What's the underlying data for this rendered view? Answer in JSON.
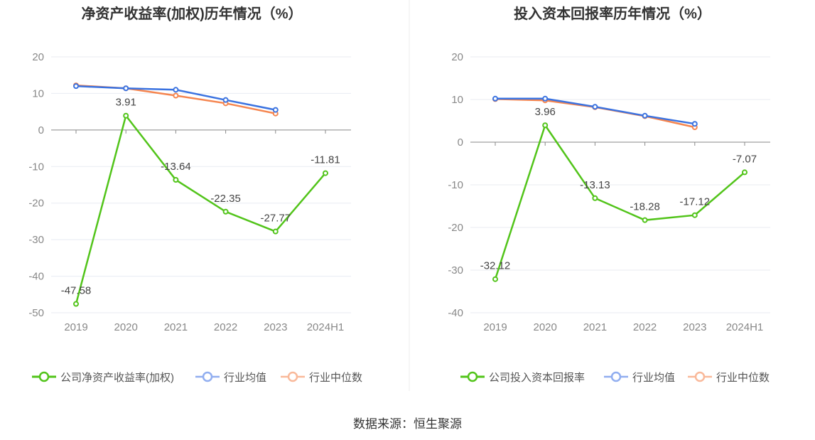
{
  "chart_data": [
    {
      "type": "line",
      "title": "净资产收益率(加权)历年情况（%）",
      "categories": [
        "2019",
        "2020",
        "2021",
        "2022",
        "2023",
        "2024H1"
      ],
      "ylim": [
        -50,
        20
      ],
      "yticks": [
        20,
        10,
        0,
        -10,
        -20,
        -30,
        -40,
        -50
      ],
      "grid": true,
      "legend_position": "bottom",
      "series": [
        {
          "name": "公司净资产收益率(加权)",
          "color": "#52c41a",
          "values": [
            -47.58,
            3.91,
            -13.64,
            -22.35,
            -27.77,
            -11.81
          ],
          "labels": [
            "-47.58",
            "3.91",
            "-13.64",
            "-22.35",
            "-27.77",
            "-11.81"
          ]
        },
        {
          "name": "行业均值",
          "color": "#3a72e0",
          "values": [
            12.0,
            11.4,
            11.0,
            8.2,
            5.5,
            null
          ]
        },
        {
          "name": "行业中位数",
          "color": "#f5854f",
          "values": [
            12.2,
            11.4,
            9.4,
            7.3,
            4.5,
            null
          ]
        }
      ]
    },
    {
      "type": "line",
      "title": "投入资本回报率历年情况（%）",
      "categories": [
        "2019",
        "2020",
        "2021",
        "2022",
        "2023",
        "2024H1"
      ],
      "ylim": [
        -40,
        20
      ],
      "yticks": [
        20,
        10,
        0,
        -10,
        -20,
        -30,
        -40
      ],
      "grid": true,
      "legend_position": "bottom",
      "series": [
        {
          "name": "公司投入资本回报率",
          "color": "#52c41a",
          "values": [
            -32.12,
            3.96,
            -13.13,
            -18.28,
            -17.12,
            -7.07
          ],
          "labels": [
            "-32.12",
            "3.96",
            "-13.13",
            "-18.28",
            "-17.12",
            "-7.07"
          ]
        },
        {
          "name": "行业均值",
          "color": "#3a72e0",
          "values": [
            10.2,
            10.2,
            8.3,
            6.2,
            4.3,
            null
          ]
        },
        {
          "name": "行业中位数",
          "color": "#f5854f",
          "values": [
            10.1,
            9.8,
            8.2,
            6.1,
            3.5,
            null
          ]
        }
      ]
    }
  ],
  "source": "数据来源：恒生聚源"
}
